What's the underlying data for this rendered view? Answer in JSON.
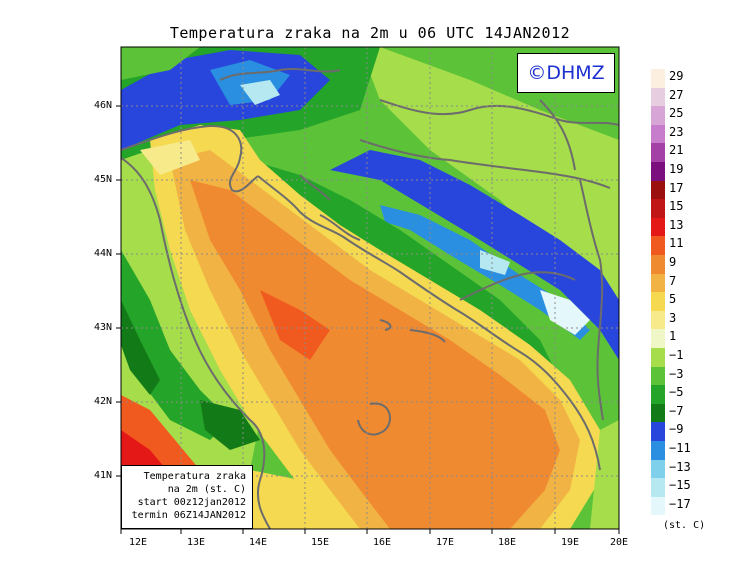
{
  "title": "Temperatura zraka na 2m u 06 UTC 14JAN2012",
  "logo_text": "©DHMZ",
  "info_box": {
    "line1": "Temperatura zraka",
    "line2": "na 2m (st. C)",
    "line3": "start 00z12jan2012",
    "line4": "termin 06Z14JAN2012"
  },
  "lat_labels": [
    "46N",
    "45N",
    "44N",
    "43N",
    "42N",
    "41N"
  ],
  "lon_labels": [
    "12E",
    "13E",
    "14E",
    "15E",
    "16E",
    "17E",
    "18E",
    "19E",
    "20E"
  ],
  "legend": {
    "unit": "(st. C)",
    "labels": [
      "29",
      "27",
      "25",
      "23",
      "21",
      "19",
      "17",
      "15",
      "13",
      "11",
      "9",
      "7",
      "5",
      "3",
      "1",
      "−1",
      "−3",
      "−5",
      "−7",
      "−9",
      "−11",
      "−13",
      "−15",
      "−17"
    ],
    "colors": [
      "#fcefe0",
      "#e6cde0",
      "#d8a6d6",
      "#c77dcb",
      "#a341a6",
      "#7c0f7e",
      "#9b0f0f",
      "#c01616",
      "#e51818",
      "#f15a1e",
      "#f08a30",
      "#f1b444",
      "#f5d951",
      "#f7ea8a",
      "#eef7c5",
      "#a6dd4a",
      "#5cc338",
      "#24a428",
      "#137a18",
      "#2946dc",
      "#2a8fe0",
      "#7fd0ea",
      "#b6e8f2",
      "#e4f7fb"
    ]
  },
  "colors": {
    "warm_sea": "#f08a30",
    "land_green": "#24a428",
    "cold_blue": "#2946dc",
    "hot_red": "#e51818",
    "border_grey": "#6c6c6c"
  }
}
